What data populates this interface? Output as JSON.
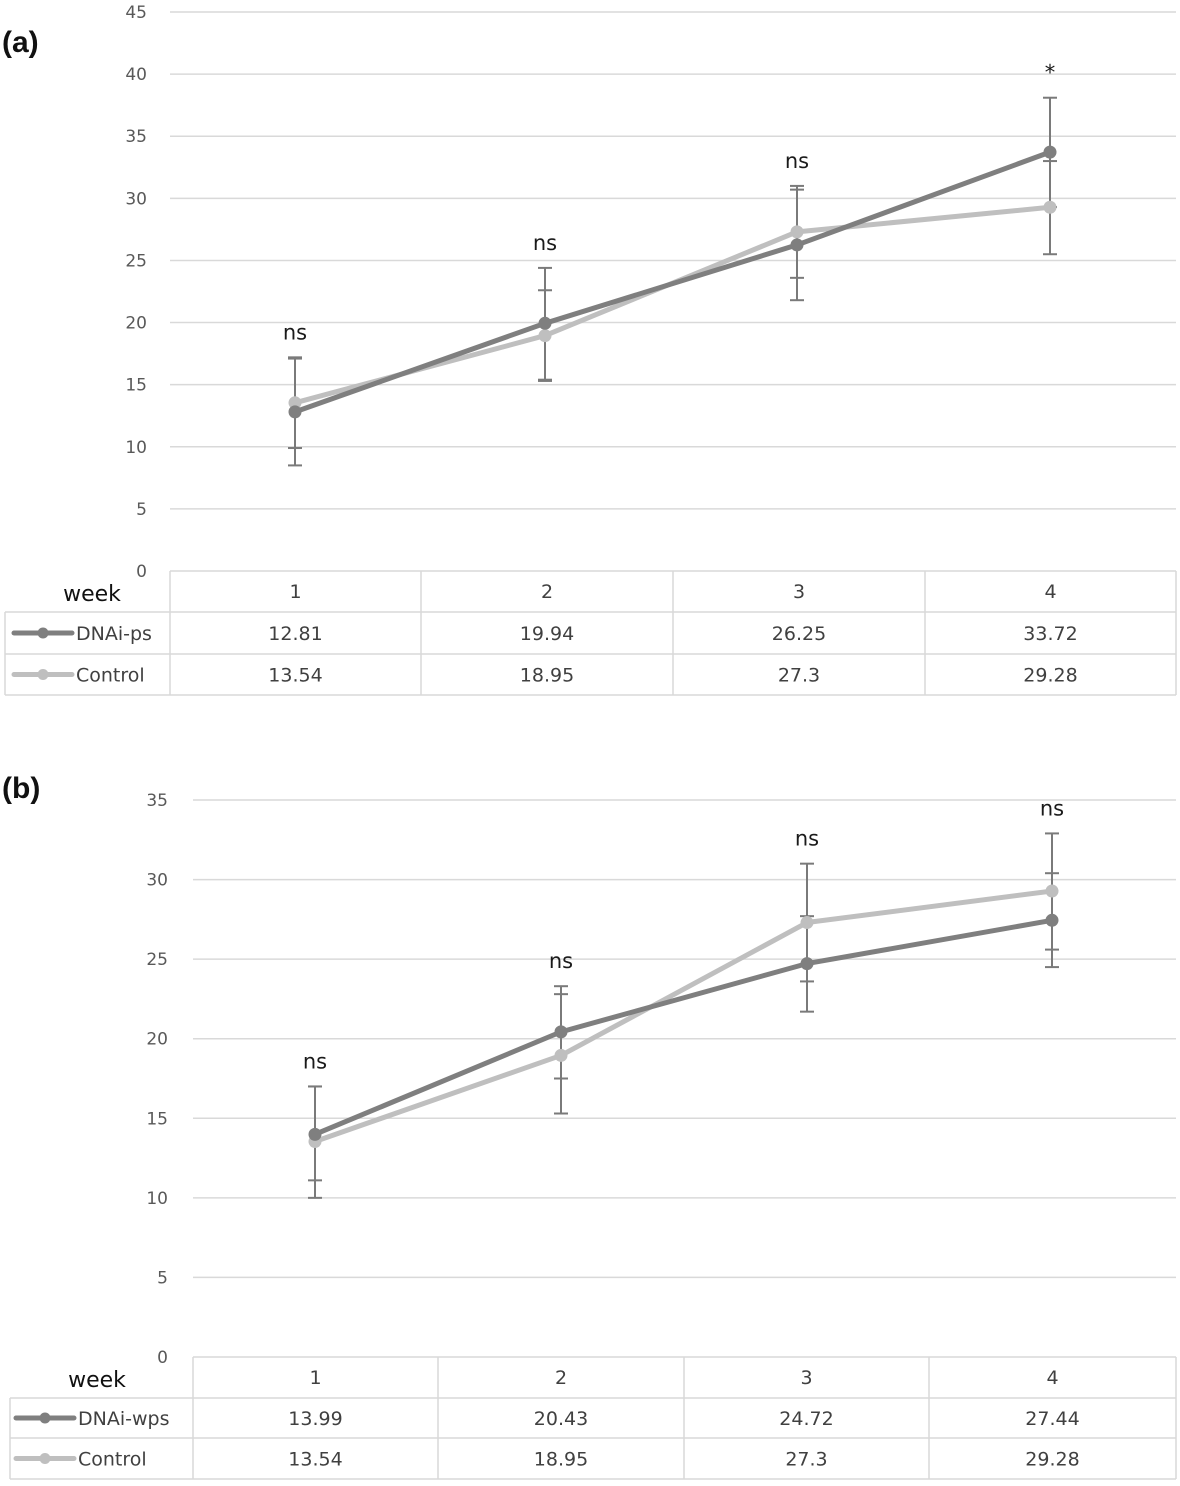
{
  "chart_data": [
    {
      "panel_label": "(a)",
      "type": "line",
      "x_label": "week",
      "categories": [
        "1",
        "2",
        "3",
        "4"
      ],
      "ylim": [
        0,
        45
      ],
      "yticks": [
        "0",
        "5",
        "10",
        "15",
        "20",
        "25",
        "30",
        "35",
        "40",
        "45"
      ],
      "grid": true,
      "legend": "table-below",
      "series": [
        {
          "name": "DNAi-ps",
          "color": "#7f7f7f",
          "values": [
            12.81,
            19.94,
            26.25,
            33.72
          ],
          "display_values": [
            "12.81",
            "19.94",
            "26.25",
            "33.72"
          ],
          "error_low": [
            8.5,
            15.3,
            21.8,
            29.3
          ],
          "error_high": [
            17.1,
            24.4,
            30.7,
            38.1
          ]
        },
        {
          "name": "Control",
          "color": "#bfbfbf",
          "values": [
            13.54,
            18.95,
            27.3,
            29.28
          ],
          "display_values": [
            "13.54",
            "18.95",
            "27.3",
            "29.28"
          ],
          "error_low": [
            9.9,
            15.4,
            23.6,
            25.5
          ],
          "error_high": [
            17.2,
            22.6,
            31.0,
            33.0
          ]
        }
      ],
      "annotations": [
        "ns",
        "ns",
        "ns",
        "*"
      ]
    },
    {
      "panel_label": "(b)",
      "type": "line",
      "x_label": "week",
      "categories": [
        "1",
        "2",
        "3",
        "4"
      ],
      "ylim": [
        0,
        35
      ],
      "yticks": [
        "0",
        "5",
        "10",
        "15",
        "20",
        "25",
        "30",
        "35"
      ],
      "grid": true,
      "legend": "table-below",
      "series": [
        {
          "name": "DNAi-wps",
          "color": "#7f7f7f",
          "values": [
            13.99,
            20.43,
            24.72,
            27.44
          ],
          "display_values": [
            "13.99",
            "20.43",
            "24.72",
            "27.44"
          ],
          "error_low": [
            10.0,
            17.5,
            21.7,
            24.5
          ],
          "error_high": [
            17.0,
            23.3,
            27.7,
            30.4
          ]
        },
        {
          "name": "Control",
          "color": "#bfbfbf",
          "values": [
            13.54,
            18.95,
            27.3,
            29.28
          ],
          "display_values": [
            "13.54",
            "18.95",
            "27.3",
            "29.28"
          ],
          "error_low": [
            11.1,
            15.3,
            23.6,
            25.6
          ],
          "error_high": [
            17.0,
            22.8,
            31.0,
            32.9
          ]
        }
      ],
      "annotations": [
        "ns",
        "ns",
        "ns",
        "ns"
      ]
    }
  ]
}
